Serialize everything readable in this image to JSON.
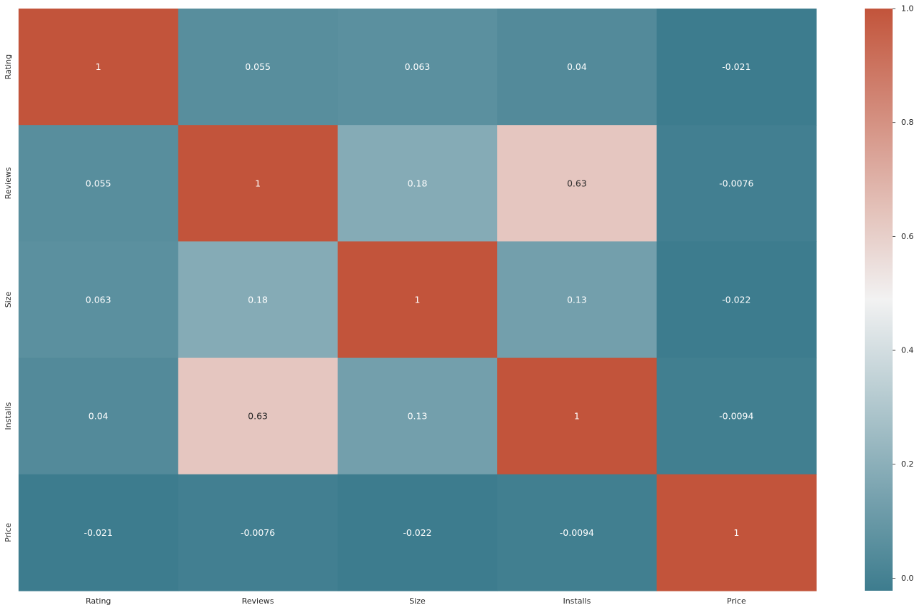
{
  "chart_data": {
    "type": "heatmap",
    "rows": [
      "Rating",
      "Reviews",
      "Size",
      "Installs",
      "Price"
    ],
    "columns": [
      "Rating",
      "Reviews",
      "Size",
      "Installs",
      "Price"
    ],
    "values": [
      [
        1,
        0.055,
        0.063,
        0.04,
        -0.021
      ],
      [
        0.055,
        1,
        0.18,
        0.63,
        -0.0076
      ],
      [
        0.063,
        0.18,
        1,
        0.13,
        -0.022
      ],
      [
        0.04,
        0.63,
        0.13,
        1,
        -0.0094
      ],
      [
        -0.021,
        -0.0076,
        -0.022,
        -0.0094,
        1
      ]
    ],
    "annotations": [
      [
        "1",
        "0.055",
        "0.063",
        "0.04",
        "-0.021"
      ],
      [
        "0.055",
        "1",
        "0.18",
        "0.63",
        "-0.0076"
      ],
      [
        "0.063",
        "0.18",
        "1",
        "0.13",
        "-0.022"
      ],
      [
        "0.04",
        "0.63",
        "0.13",
        "1",
        "-0.0094"
      ],
      [
        "-0.021",
        "-0.0076",
        "-0.022",
        "-0.0094",
        "1"
      ]
    ],
    "colorbar": {
      "range": [
        -0.022,
        1.0
      ],
      "ticks": [
        "0.0",
        "0.2",
        "0.4",
        "0.6",
        "0.8",
        "1.0"
      ],
      "tick_values": [
        0.0,
        0.2,
        0.4,
        0.6,
        0.8,
        1.0
      ],
      "colormap": "diverging teal-white-orange",
      "low_color": "#3d7c8e",
      "mid_color": "#f2f2f2",
      "high_color": "#c2543b"
    },
    "title": "",
    "xlabel": "",
    "ylabel": ""
  }
}
